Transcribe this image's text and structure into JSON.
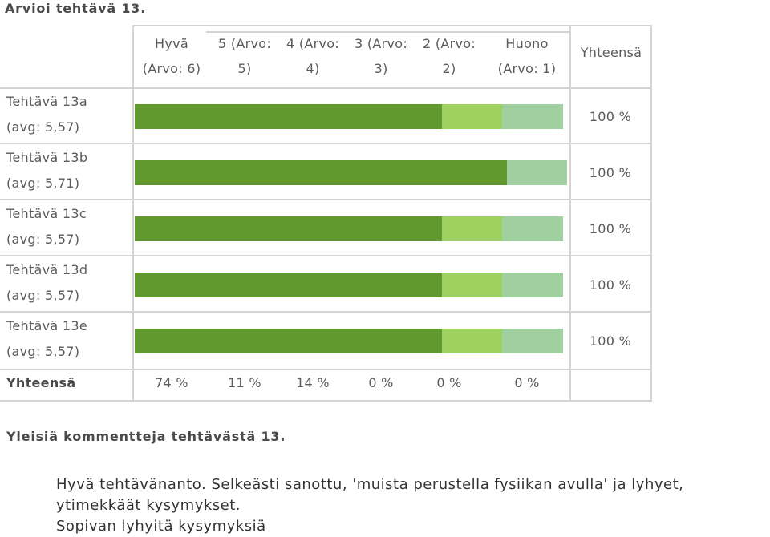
{
  "page": {
    "title": "Arvioi tehtävä 13.",
    "comments_title": "Yleisiä kommentteja tehtävästä 13.",
    "comments": [
      "Hyvä tehtävänanto. Selkeästi sanottu, 'muista perustella fysiikan avulla' ja lyhyet,",
      "ytimekkäät kysymykset.",
      "Sopivan lyhyitä kysymyksiä"
    ]
  },
  "chart_data": {
    "type": "bar",
    "orientation": "horizontal",
    "stacked": true,
    "columns": [
      {
        "line1": "Hyvä",
        "line2": "(Arvo: 6)"
      },
      {
        "line1": "5 (Arvo:",
        "line2": "5)"
      },
      {
        "line1": "4 (Arvo:",
        "line2": "4)"
      },
      {
        "line1": "3 (Arvo:",
        "line2": "3)"
      },
      {
        "line1": "2 (Arvo:",
        "line2": "2)"
      },
      {
        "line1": "Huono",
        "line2": "(Arvo: 1)"
      }
    ],
    "total_header": "Yhteensä",
    "rows": [
      {
        "label": "Tehtävä 13a",
        "avg": "(avg: 5,57)",
        "values": [
          71,
          14,
          14,
          0,
          0,
          0
        ],
        "total": "100 %"
      },
      {
        "label": "Tehtävä 13b",
        "avg": "(avg: 5,71)",
        "values": [
          86,
          0,
          14,
          0,
          0,
          0
        ],
        "total": "100 %"
      },
      {
        "label": "Tehtävä 13c",
        "avg": "(avg: 5,57)",
        "values": [
          71,
          14,
          14,
          0,
          0,
          0
        ],
        "total": "100 %"
      },
      {
        "label": "Tehtävä 13d",
        "avg": "(avg: 5,57)",
        "values": [
          71,
          14,
          14,
          0,
          0,
          0
        ],
        "total": "100 %"
      },
      {
        "label": "Tehtävä 13e",
        "avg": "(avg: 5,57)",
        "values": [
          71,
          14,
          14,
          0,
          0,
          0
        ],
        "total": "100 %"
      }
    ],
    "footer": {
      "label": "Yhteensä",
      "values": [
        "74 %",
        "11 %",
        "14 %",
        "0 %",
        "0 %",
        "0 %"
      ]
    },
    "colors": [
      "#62992e",
      "#9fd160",
      "#a0d0a0",
      "#cfe8cf",
      "#e0e0e0",
      "#eeeeee"
    ]
  }
}
